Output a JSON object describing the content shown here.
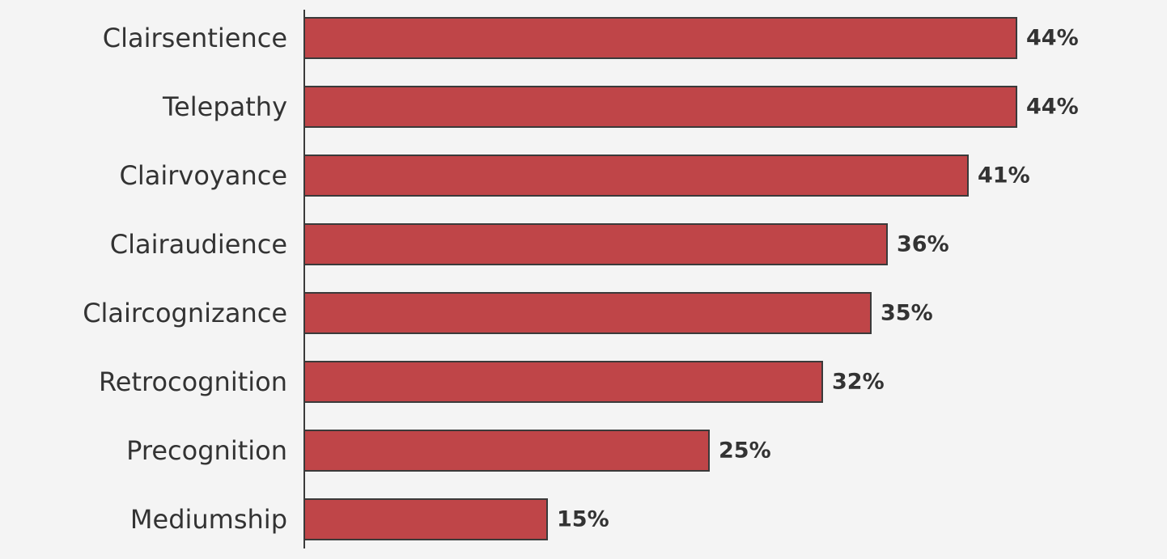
{
  "chart_data": {
    "type": "bar",
    "orientation": "horizontal",
    "categories": [
      "Clairsentience",
      "Telepathy",
      "Clairvoyance",
      "Clairaudience",
      "Claircognizance",
      "Retrocognition",
      "Precognition",
      "Mediumship"
    ],
    "values": [
      44,
      44,
      41,
      36,
      35,
      32,
      25,
      15
    ],
    "value_labels": [
      "44%",
      "44%",
      "41%",
      "36%",
      "35%",
      "32%",
      "25%",
      "15%"
    ],
    "xlim": [
      0,
      44
    ],
    "grid": false,
    "legend": "none"
  },
  "colors": {
    "bar_fill": "#bf4548",
    "bar_stroke": "#3a3a3a",
    "axis": "#3a3a3a",
    "text": "#333333",
    "background": "#f4f4f4"
  }
}
